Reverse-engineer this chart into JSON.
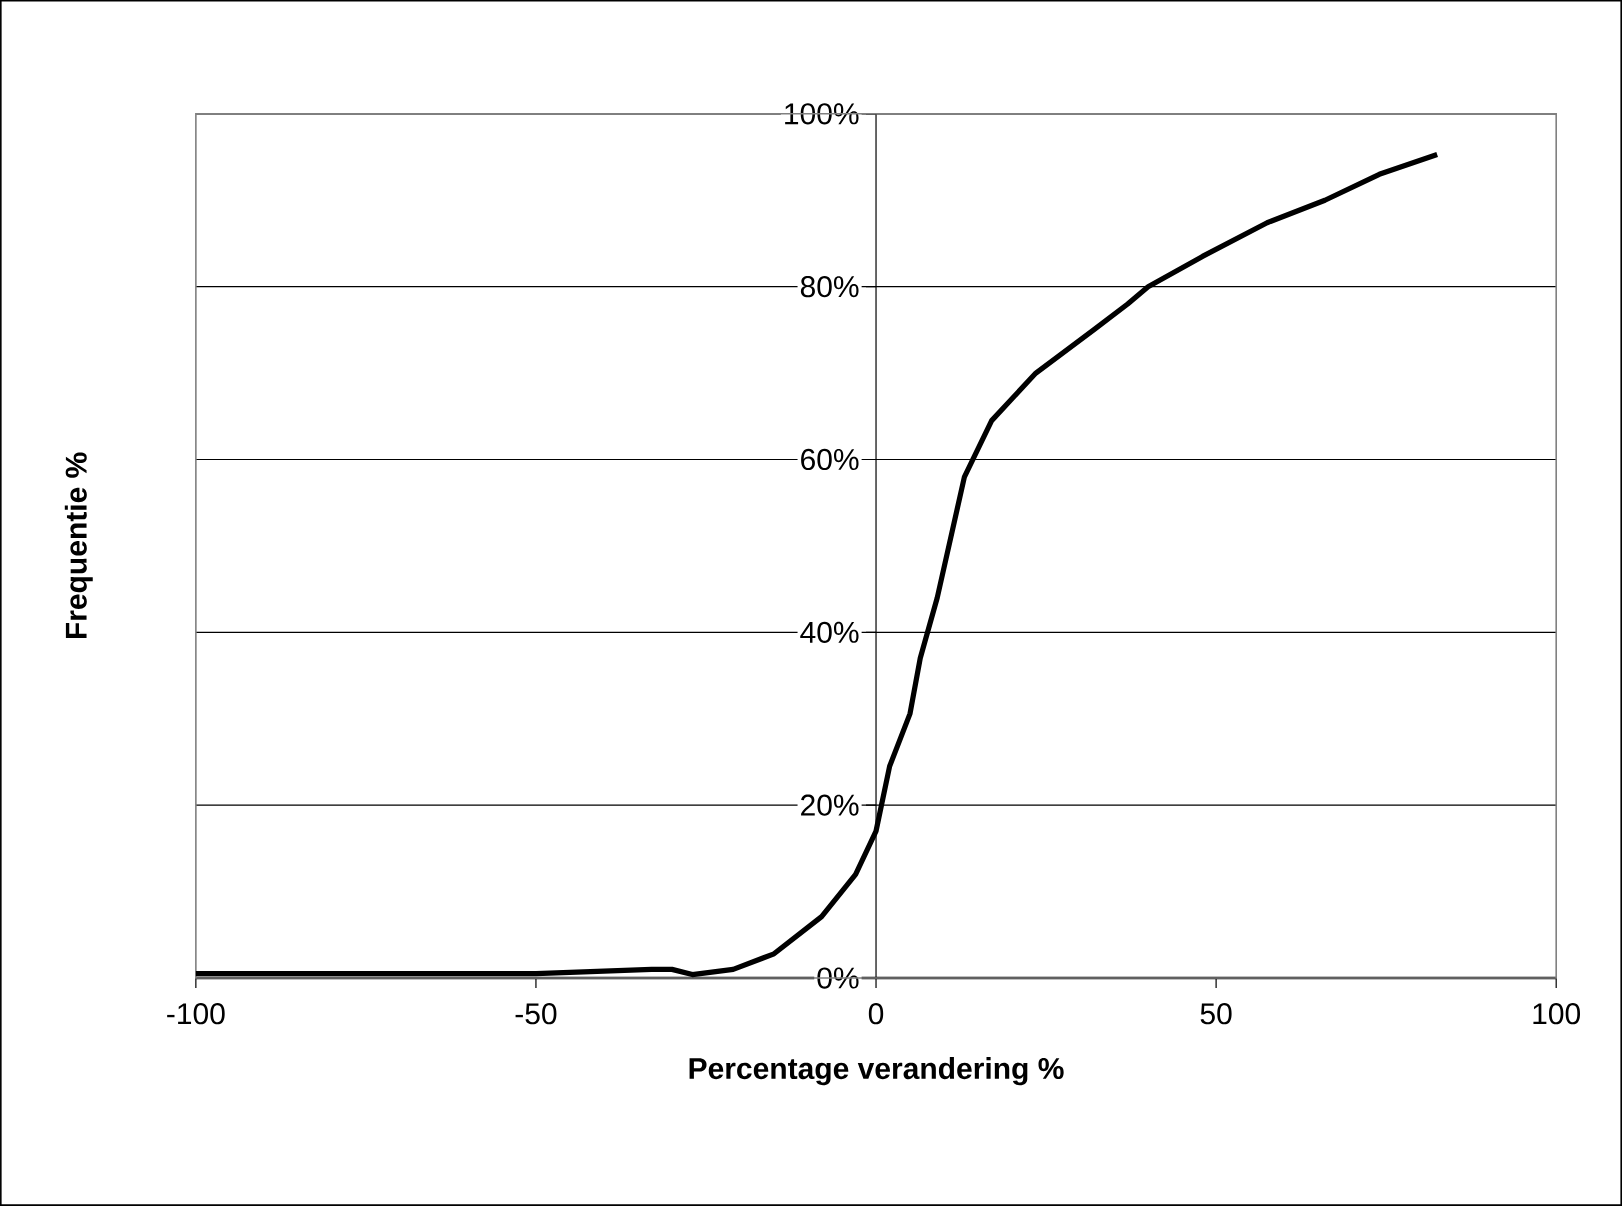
{
  "chart_data": {
    "type": "line",
    "xlabel": "Percentage verandering %",
    "ylabel": "Frequentie %",
    "x": [
      -100,
      -50,
      -40,
      -33,
      -30,
      -27,
      -21,
      -15,
      -8,
      -3,
      0,
      2,
      5,
      6.5,
      9,
      13,
      17,
      23.5,
      32,
      37,
      40,
      48,
      57.5,
      66,
      74,
      82.5
    ],
    "values": [
      0.5,
      0.5,
      0.8,
      1.0,
      1.0,
      0.4,
      1.0,
      2.8,
      7.1,
      12,
      17,
      24.5,
      30.6,
      37,
      44,
      58,
      64.5,
      70,
      75,
      78,
      80,
      83.5,
      87.4,
      90,
      93,
      95.3
    ],
    "color": "#000000",
    "xlim": [
      -100,
      100
    ],
    "xticks": [
      -100,
      -50,
      0,
      50,
      100
    ],
    "ylim": [
      0,
      100
    ],
    "yticks": [
      {
        "value": 0,
        "label": "0%"
      },
      {
        "value": 20,
        "label": "20%"
      },
      {
        "value": 40,
        "label": "40%"
      },
      {
        "value": 60,
        "label": "60%"
      },
      {
        "value": 80,
        "label": "80%"
      },
      {
        "value": 100,
        "label": "100%"
      }
    ],
    "grid": "y"
  }
}
